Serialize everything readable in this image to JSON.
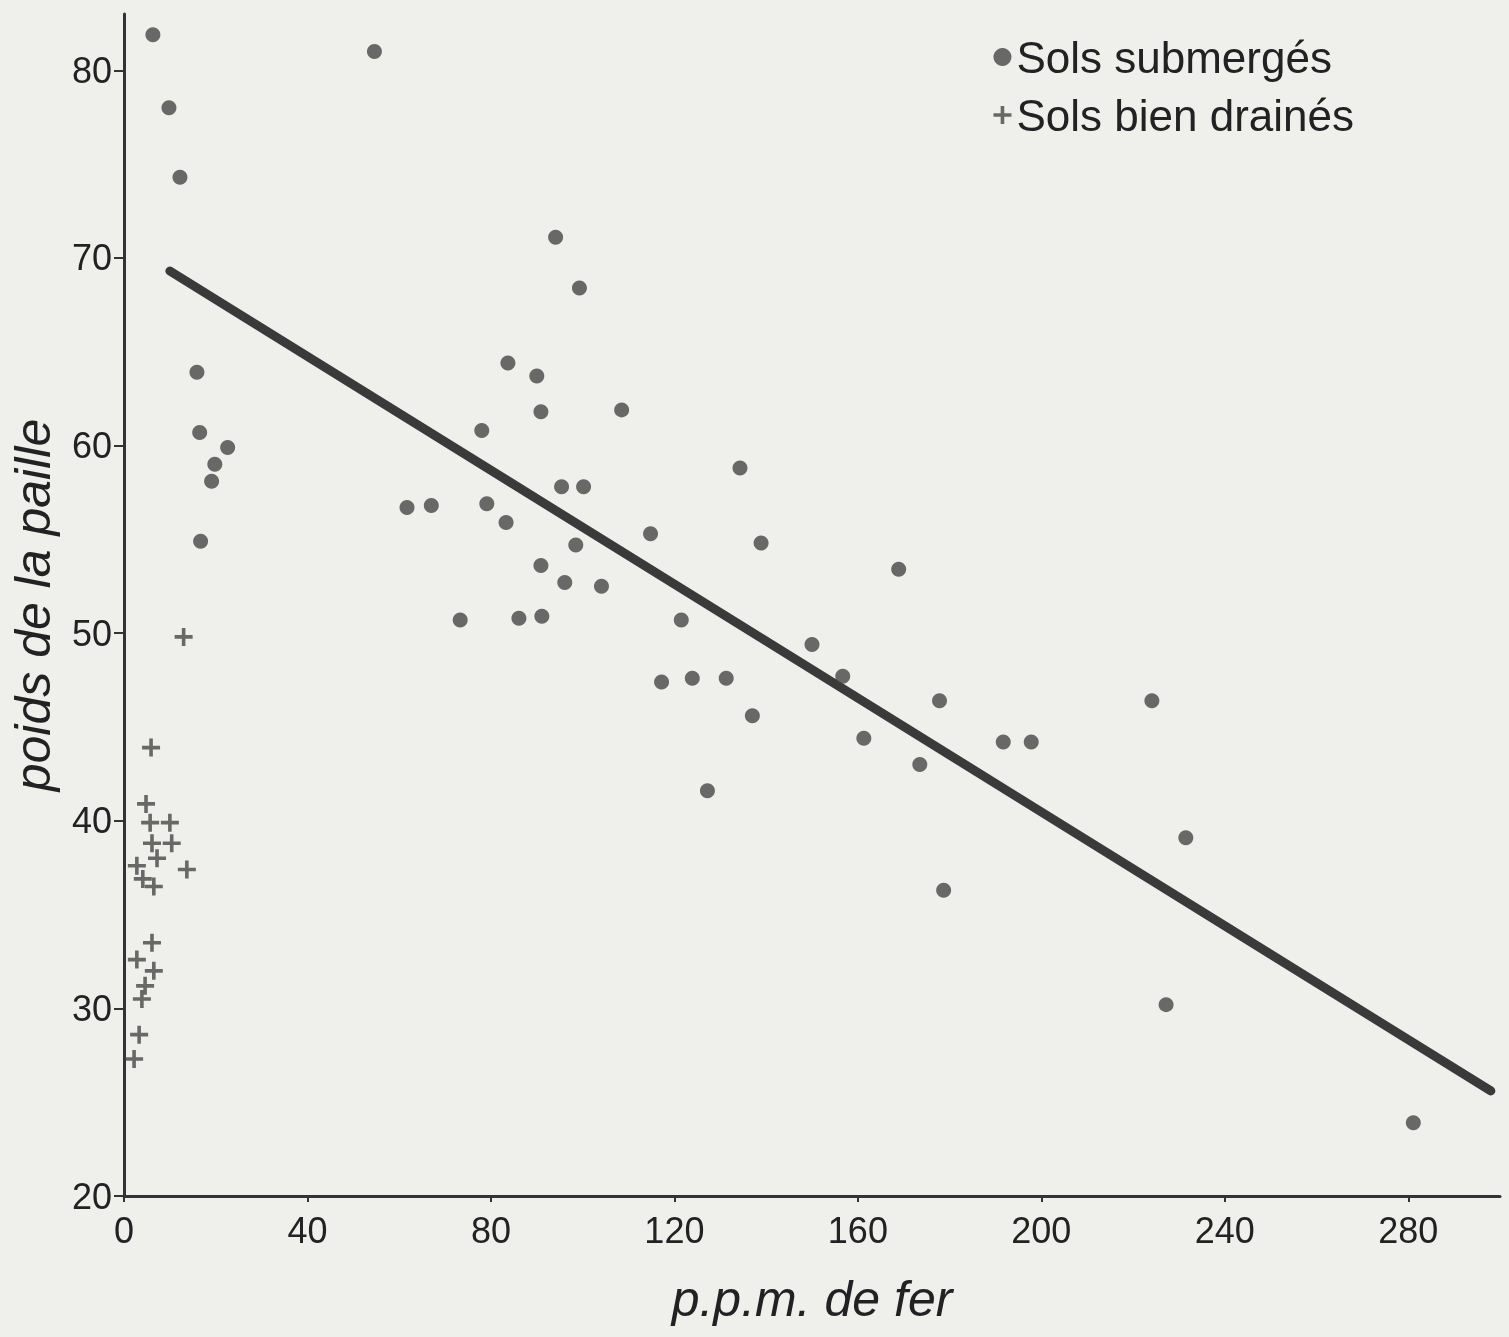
{
  "chart_data": {
    "type": "scatter",
    "xlabel": "p.p.m. de fer",
    "ylabel": "poids de la paille",
    "xlim": [
      0,
      300
    ],
    "xticks": [
      0,
      40,
      80,
      120,
      160,
      200,
      240,
      280
    ],
    "ylim": [
      20,
      83
    ],
    "yticks": [
      20,
      30,
      40,
      50,
      60,
      70,
      80
    ],
    "grid": false,
    "legend": "top right",
    "series": [
      {
        "name": "Sols submergés",
        "type": "scatter",
        "marker": "circle",
        "color": "#464646",
        "x": [
          6.3,
          9.8,
          12.2,
          54.6,
          15.9,
          16.5,
          16.7,
          19.1,
          19.8,
          22.6,
          61.7,
          67.0,
          73.3,
          78.0,
          79.1,
          83.3,
          83.7,
          86.1,
          90.0,
          90.9,
          90.9,
          91.1,
          94.1,
          95.4,
          96.1,
          98.5,
          99.3,
          100.2,
          104.1,
          108.5,
          114.8,
          117.2,
          121.5,
          123.9,
          127.2,
          131.3,
          134.3,
          137.0,
          138.9,
          150.0,
          156.7,
          161.3,
          168.9,
          173.5,
          177.8,
          178.7,
          191.7,
          197.8,
          224.1,
          227.2,
          231.5,
          281.1
        ],
        "values": [
          81.9,
          78.0,
          74.3,
          81.0,
          63.9,
          60.7,
          54.9,
          58.1,
          59.0,
          59.9,
          56.7,
          56.8,
          50.7,
          60.8,
          56.9,
          55.9,
          64.4,
          50.8,
          63.7,
          61.8,
          53.6,
          50.9,
          71.1,
          57.8,
          52.7,
          54.7,
          68.4,
          57.8,
          52.5,
          61.9,
          55.3,
          47.4,
          50.7,
          47.6,
          41.6,
          47.6,
          58.8,
          45.6,
          54.8,
          49.4,
          47.7,
          44.4,
          53.4,
          43.0,
          46.4,
          36.3,
          44.2,
          44.2,
          46.4,
          30.2,
          39.1,
          23.9
        ]
      },
      {
        "name": "Sols bien drainés",
        "type": "scatter",
        "marker": "cross",
        "color": "#464646",
        "x": [
          13.0,
          5.9,
          4.8,
          5.7,
          10.0,
          6.1,
          10.4,
          7.2,
          2.8,
          13.7,
          4.1,
          6.5,
          6.1,
          2.8,
          6.5,
          4.6,
          3.9,
          3.3,
          2.2
        ],
        "values": [
          49.8,
          43.9,
          40.9,
          39.9,
          39.9,
          38.8,
          38.8,
          38.0,
          37.6,
          37.4,
          36.9,
          36.5,
          33.5,
          32.6,
          32.0,
          31.2,
          30.5,
          28.6,
          27.3
        ]
      },
      {
        "type": "line",
        "marker": "none",
        "line_style": "solid",
        "color": "#3a3a3a",
        "x": [
          10,
          298
        ],
        "values": [
          69.3,
          25.6
        ]
      }
    ]
  }
}
